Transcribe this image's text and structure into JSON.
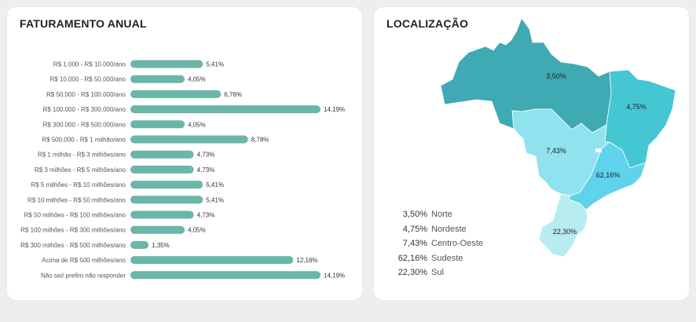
{
  "revenue_card": {
    "title": "FATURAMENTO ANUAL"
  },
  "location_card": {
    "title": "LOCALIZAÇÃO"
  },
  "chart_data": [
    {
      "type": "bar",
      "orientation": "horizontal",
      "title": "FATURAMENTO ANUAL",
      "categories": [
        "R$ 1.000 - R$ 10.000/ano",
        "R$ 10.000 - R$ 50.000/ano",
        "R$ 50.000 - R$ 100.000/ano",
        "R$ 100.000 - R$ 300.000/ano",
        "R$ 300.000 - R$ 500.000/ano",
        "R$ 500.000 - R$ 1 milhão/ano",
        "R$ 1 milhão - R$ 3 milhões/ano",
        "R$ 3 milhões - R$ 5 milhões/ano",
        "R$ 5 milhões - R$ 10 milhões/ano",
        "R$ 10 milhões - R$ 50 milhões/ano",
        "R$ 50 milhões - R$ 100 milhões/ano",
        "R$ 100 milhões - R$ 300 milhões/ano",
        "R$ 300 milhões - R$ 500 milhões/ano",
        "Acima de R$ 500 milhões/ano",
        "Não sei/ prefiro não responder"
      ],
      "values": [
        5.41,
        4.05,
        6.76,
        14.19,
        4.05,
        8.78,
        4.73,
        4.73,
        5.41,
        5.41,
        4.73,
        4.05,
        1.35,
        12.16,
        14.19
      ],
      "labels": [
        "5,41%",
        "4,05%",
        "6,76%",
        "14,19%",
        "4,05%",
        "8,78%",
        "4,73%",
        "4,73%",
        "5,41%",
        "5,41%",
        "4,73%",
        "4,05%",
        "1,35%",
        "12,16%",
        "14,19%"
      ],
      "bar_color": "#6bb5a9",
      "grid": false
    },
    {
      "type": "choropleth",
      "title": "LOCALIZAÇÃO",
      "regions": [
        {
          "name": "Norte",
          "value": 3.5,
          "label": "3,50%",
          "color": "#3fa9b4"
        },
        {
          "name": "Nordeste",
          "value": 4.75,
          "label": "4,75%",
          "color": "#45c6d3"
        },
        {
          "name": "Centro-Oeste",
          "value": 7.43,
          "label": "7,43%",
          "color": "#8fe2ee"
        },
        {
          "name": "Sudeste",
          "value": 62.16,
          "label": "62,16%",
          "color": "#5fd2ec"
        },
        {
          "name": "Sul",
          "value": 22.3,
          "label": "22,30%",
          "color": "#b7ecf0"
        }
      ]
    }
  ]
}
